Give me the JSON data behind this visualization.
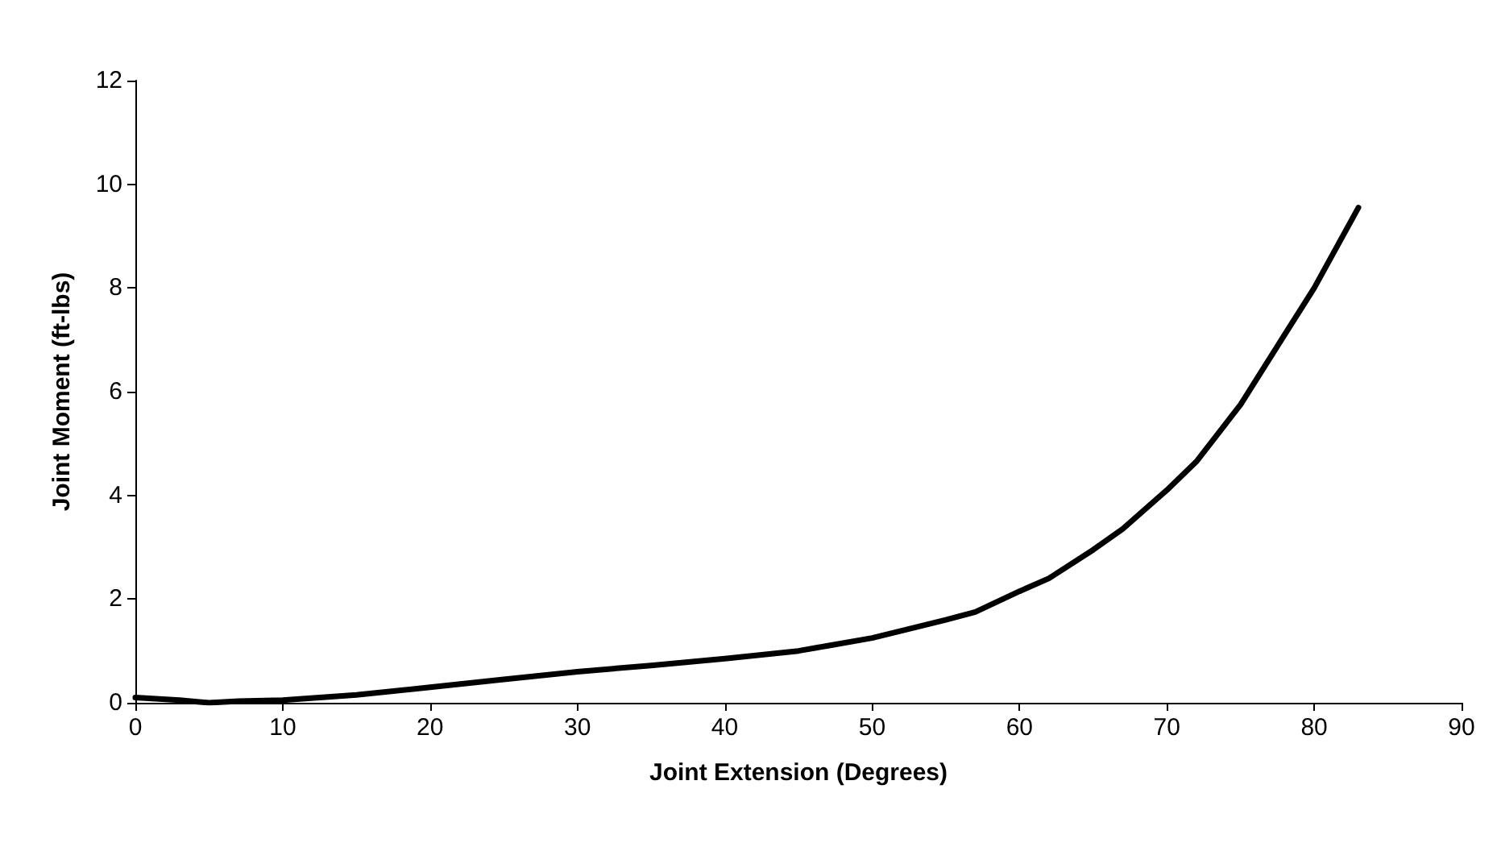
{
  "chart_data": {
    "type": "line",
    "xlabel": "Joint Extension (Degrees)",
    "ylabel": "Joint Moment (ft-lbs)",
    "x": [
      0,
      3,
      5,
      7,
      10,
      15,
      20,
      25,
      30,
      35,
      40,
      45,
      47,
      50,
      55,
      57,
      60,
      62,
      65,
      67,
      70,
      72,
      75,
      78,
      80,
      83
    ],
    "series": [
      {
        "color": "#000000",
        "values": [
          0.1,
          0.05,
          0,
          0.03,
          0.05,
          0.15,
          0.3,
          0.45,
          0.6,
          0.72,
          0.85,
          1.0,
          1.1,
          1.25,
          1.6,
          1.75,
          2.15,
          2.4,
          2.95,
          3.35,
          4.1,
          4.65,
          5.75,
          7.1,
          8.0,
          9.55
        ]
      }
    ],
    "xlim": [
      0,
      90
    ],
    "xticks": [
      0,
      10,
      20,
      30,
      40,
      50,
      60,
      70,
      80,
      90
    ],
    "ylim": [
      0,
      12
    ],
    "yticks": [
      0,
      2,
      4,
      6,
      8,
      10,
      12
    ],
    "marker": "none",
    "line_style": "solid"
  }
}
